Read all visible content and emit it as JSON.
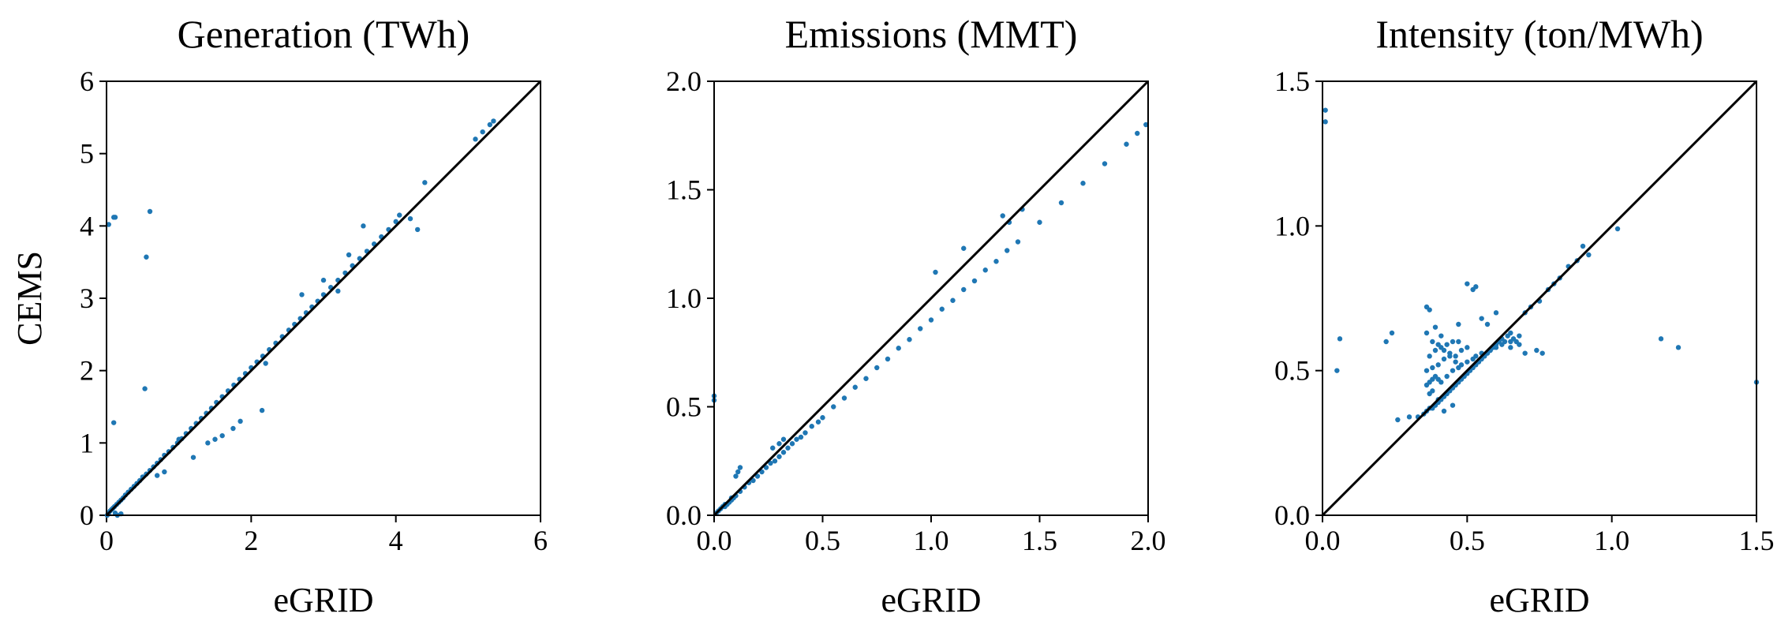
{
  "colors": {
    "points": "#1f77b4",
    "axis": "#000000",
    "identity_line": "#000000"
  },
  "chart_data": [
    {
      "type": "scatter",
      "title": "Generation (TWh)",
      "xlabel": "eGRID",
      "ylabel": "CEMS",
      "xlim": [
        0,
        6
      ],
      "ylim": [
        0,
        6
      ],
      "xticks": [
        0,
        2,
        4,
        6
      ],
      "yticks": [
        0,
        1,
        2,
        3,
        4,
        5,
        6
      ],
      "xtick_labels": [
        "0",
        "2",
        "4",
        "6"
      ],
      "ytick_labels": [
        "0",
        "1",
        "2",
        "3",
        "4",
        "5",
        "6"
      ],
      "grid": false,
      "identity_line": true,
      "x": [
        0.01,
        0.03,
        0.05,
        0.07,
        0.09,
        0.11,
        0.14,
        0.17,
        0.2,
        0.23,
        0.26,
        0.3,
        0.34,
        0.38,
        0.42,
        0.46,
        0.5,
        0.55,
        0.6,
        0.65,
        0.7,
        0.75,
        0.8,
        0.86,
        0.92,
        0.98,
        1.04,
        1.1,
        1.17,
        1.24,
        1.31,
        1.38,
        1.45,
        1.52,
        1.6,
        1.68,
        1.76,
        1.84,
        1.92,
        2.0,
        2.08,
        2.16,
        2.25,
        2.34,
        2.43,
        2.52,
        2.6,
        2.68,
        2.76,
        2.84,
        2.92,
        3.0,
        3.1,
        3.2,
        3.3,
        3.4,
        3.5,
        3.6,
        3.7,
        3.8,
        3.9,
        4.0,
        4.05,
        5.1,
        5.2,
        5.3,
        5.35,
        0.03,
        0.1,
        0.12,
        0.55,
        0.6,
        0.53,
        0.1,
        1.2,
        1.4,
        1.5,
        1.6,
        1.75,
        1.85,
        2.15,
        0.8,
        0.7,
        0.15,
        0.2,
        1.0,
        2.2,
        2.7,
        3.0,
        3.2,
        3.35,
        3.55,
        4.3,
        4.2,
        4.4,
        0.12
      ],
      "y": [
        0.0,
        0.03,
        0.06,
        0.08,
        0.1,
        0.12,
        0.15,
        0.18,
        0.21,
        0.24,
        0.28,
        0.32,
        0.36,
        0.4,
        0.44,
        0.48,
        0.53,
        0.57,
        0.62,
        0.67,
        0.72,
        0.77,
        0.83,
        0.88,
        0.94,
        1.0,
        1.06,
        1.13,
        1.2,
        1.27,
        1.34,
        1.41,
        1.48,
        1.56,
        1.64,
        1.72,
        1.8,
        1.88,
        1.96,
        2.04,
        2.12,
        2.2,
        2.29,
        2.38,
        2.47,
        2.56,
        2.64,
        2.72,
        2.8,
        2.88,
        2.96,
        3.05,
        3.15,
        3.25,
        3.35,
        3.45,
        3.55,
        3.65,
        3.75,
        3.85,
        3.95,
        4.06,
        4.15,
        5.2,
        5.3,
        5.4,
        5.45,
        4.02,
        4.12,
        4.12,
        3.57,
        4.2,
        1.75,
        1.28,
        0.8,
        1.0,
        1.05,
        1.1,
        1.2,
        1.3,
        1.45,
        0.6,
        0.55,
        0.0,
        0.02,
        1.05,
        2.1,
        3.05,
        3.25,
        3.1,
        3.6,
        4.0,
        3.95,
        4.1,
        4.6,
        0.03
      ]
    },
    {
      "type": "scatter",
      "title": "Emissions (MMT)",
      "xlabel": "eGRID",
      "ylabel": "",
      "xlim": [
        0,
        2
      ],
      "ylim": [
        0,
        2
      ],
      "xticks": [
        0,
        0.5,
        1.0,
        1.5,
        2.0
      ],
      "yticks": [
        0,
        0.5,
        1.0,
        1.5,
        2.0
      ],
      "xtick_labels": [
        "0.0",
        "0.5",
        "1.0",
        "1.5",
        "2.0"
      ],
      "ytick_labels": [
        "0.0",
        "0.5",
        "1.0",
        "1.5",
        "2.0"
      ],
      "grid": false,
      "identity_line": true,
      "x": [
        0.01,
        0.02,
        0.03,
        0.04,
        0.05,
        0.06,
        0.07,
        0.08,
        0.09,
        0.1,
        0.12,
        0.14,
        0.16,
        0.18,
        0.2,
        0.22,
        0.24,
        0.26,
        0.28,
        0.3,
        0.32,
        0.34,
        0.36,
        0.38,
        0.4,
        0.42,
        0.45,
        0.48,
        0.5,
        0.55,
        0.6,
        0.65,
        0.7,
        0.75,
        0.8,
        0.85,
        0.9,
        0.95,
        1.0,
        1.05,
        1.1,
        1.15,
        1.2,
        1.25,
        1.3,
        1.35,
        1.4,
        1.5,
        1.6,
        1.7,
        1.8,
        1.9,
        1.95,
        1.99,
        0.1,
        0.11,
        0.12,
        0.27,
        0.3,
        0.32,
        1.02,
        1.15,
        1.33,
        1.36,
        1.42,
        0.0,
        0.0,
        0.05,
        0.08
      ],
      "y": [
        0.01,
        0.02,
        0.03,
        0.04,
        0.05,
        0.05,
        0.06,
        0.07,
        0.08,
        0.09,
        0.11,
        0.13,
        0.15,
        0.16,
        0.18,
        0.2,
        0.22,
        0.24,
        0.25,
        0.27,
        0.29,
        0.31,
        0.33,
        0.35,
        0.36,
        0.38,
        0.41,
        0.43,
        0.45,
        0.5,
        0.54,
        0.59,
        0.63,
        0.68,
        0.72,
        0.77,
        0.81,
        0.86,
        0.9,
        0.95,
        0.99,
        1.04,
        1.08,
        1.13,
        1.17,
        1.22,
        1.26,
        1.35,
        1.44,
        1.53,
        1.62,
        1.71,
        1.76,
        1.8,
        0.18,
        0.2,
        0.22,
        0.31,
        0.33,
        0.35,
        1.12,
        1.23,
        1.38,
        1.35,
        1.41,
        0.55,
        0.53,
        0.04,
        0.08
      ]
    },
    {
      "type": "scatter",
      "title": "Intensity (ton/MWh)",
      "xlabel": "eGRID",
      "ylabel": "",
      "xlim": [
        0,
        1.5
      ],
      "ylim": [
        0,
        1.5
      ],
      "xticks": [
        0,
        0.5,
        1.0,
        1.5
      ],
      "yticks": [
        0,
        0.5,
        1.0,
        1.5
      ],
      "xtick_labels": [
        "0.0",
        "0.5",
        "1.0",
        "1.5"
      ],
      "ytick_labels": [
        "0.0",
        "0.5",
        "1.0",
        "1.5"
      ],
      "grid": false,
      "identity_line": true,
      "x": [
        0.36,
        0.37,
        0.38,
        0.39,
        0.4,
        0.41,
        0.42,
        0.43,
        0.44,
        0.45,
        0.46,
        0.47,
        0.48,
        0.49,
        0.5,
        0.51,
        0.52,
        0.53,
        0.54,
        0.55,
        0.56,
        0.57,
        0.58,
        0.59,
        0.6,
        0.61,
        0.62,
        0.63,
        0.64,
        0.65,
        0.66,
        0.67,
        0.68,
        0.7,
        0.72,
        0.75,
        0.78,
        0.8,
        0.82,
        0.85,
        0.88,
        0.9,
        0.92,
        1.02,
        0.36,
        0.37,
        0.38,
        0.39,
        0.4,
        0.41,
        0.43,
        0.45,
        0.47,
        0.48,
        0.5,
        0.52,
        0.53,
        0.55,
        0.58,
        0.6,
        0.62,
        0.65,
        0.36,
        0.38,
        0.4,
        0.42,
        0.44,
        0.46,
        0.48,
        0.5,
        0.37,
        0.39,
        0.41,
        0.43,
        0.45,
        0.47,
        0.36,
        0.38,
        0.4,
        0.42,
        0.44,
        0.46,
        0.36,
        0.37,
        0.39,
        0.41,
        0.47,
        0.53,
        0.5,
        0.52,
        0.6,
        0.55,
        0.57,
        0.45,
        0.42,
        0.35,
        0.3,
        0.33,
        0.26,
        0.22,
        0.24,
        0.06,
        0.05,
        1.17,
        1.23,
        0.01,
        0.01,
        1.5,
        0.4,
        0.37,
        0.38,
        0.65,
        0.7,
        0.74,
        0.76,
        0.68
      ],
      "y": [
        0.36,
        0.37,
        0.37,
        0.38,
        0.39,
        0.4,
        0.41,
        0.42,
        0.43,
        0.44,
        0.45,
        0.46,
        0.47,
        0.48,
        0.49,
        0.5,
        0.51,
        0.52,
        0.53,
        0.54,
        0.55,
        0.56,
        0.57,
        0.58,
        0.59,
        0.6,
        0.61,
        0.6,
        0.62,
        0.63,
        0.61,
        0.6,
        0.62,
        0.7,
        0.72,
        0.74,
        0.78,
        0.8,
        0.82,
        0.86,
        0.88,
        0.93,
        0.9,
        0.99,
        0.45,
        0.46,
        0.47,
        0.48,
        0.47,
        0.46,
        0.48,
        0.5,
        0.51,
        0.52,
        0.53,
        0.54,
        0.55,
        0.56,
        0.57,
        0.58,
        0.59,
        0.6,
        0.5,
        0.51,
        0.52,
        0.54,
        0.56,
        0.55,
        0.57,
        0.58,
        0.55,
        0.57,
        0.58,
        0.59,
        0.6,
        0.6,
        0.63,
        0.6,
        0.59,
        0.57,
        0.55,
        0.53,
        0.72,
        0.71,
        0.65,
        0.62,
        0.66,
        0.79,
        0.8,
        0.78,
        0.7,
        0.68,
        0.66,
        0.38,
        0.36,
        0.35,
        0.34,
        0.34,
        0.33,
        0.6,
        0.63,
        0.61,
        0.5,
        0.61,
        0.58,
        1.4,
        1.36,
        0.46,
        0.4,
        0.42,
        0.43,
        0.58,
        0.56,
        0.57,
        0.56,
        0.59
      ]
    }
  ]
}
